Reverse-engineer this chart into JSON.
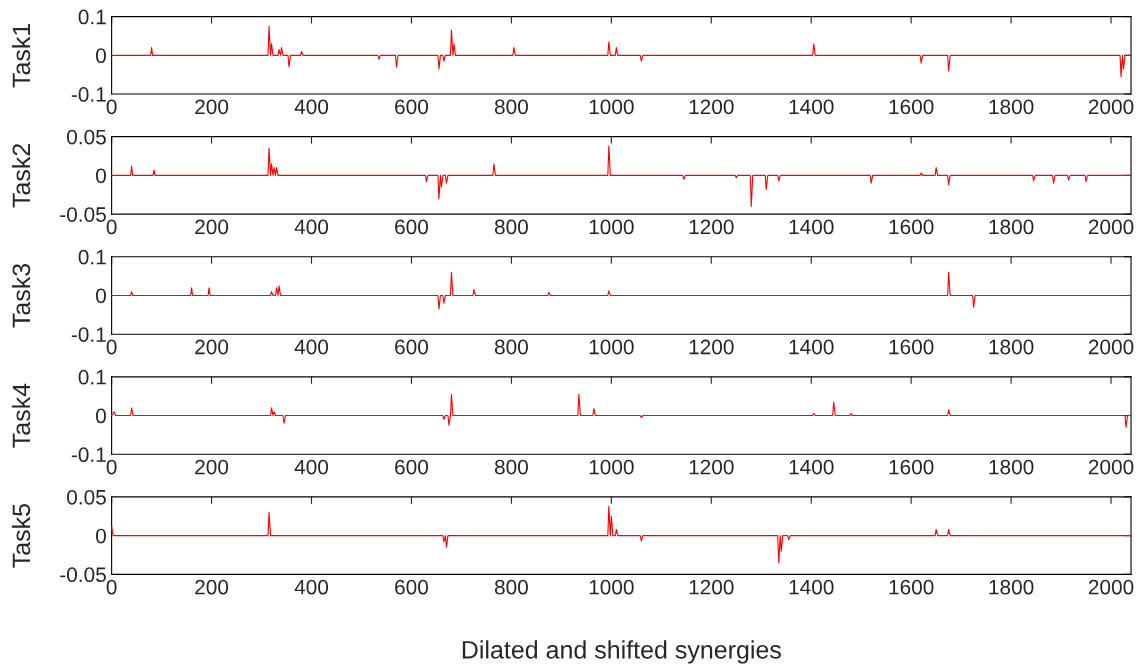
{
  "chart_data": [
    {
      "type": "line",
      "ylabel": "Task1",
      "xlim": [
        0,
        2040
      ],
      "ylim": [
        -0.1,
        0.1
      ],
      "xticks": [
        0,
        200,
        400,
        600,
        800,
        1000,
        1200,
        1400,
        1600,
        1800,
        2000
      ],
      "yticks": [
        -0.1,
        0,
        0.1
      ],
      "grid": false,
      "series": [
        {
          "color": "#ff0000",
          "x": [
            0,
            78,
            80,
            82,
            313,
            315,
            318,
            320,
            323,
            333,
            335,
            338,
            340,
            343,
            353,
            355,
            358,
            378,
            380,
            383,
            533,
            535,
            538,
            568,
            570,
            573,
            653,
            655,
            658,
            663,
            665,
            668,
            678,
            680,
            683,
            685,
            688,
            803,
            805,
            808,
            993,
            995,
            998,
            1008,
            1010,
            1013,
            1058,
            1060,
            1063,
            1403,
            1405,
            1408,
            1618,
            1620,
            1623,
            1673,
            1675,
            1678,
            2018,
            2020,
            2023,
            2025,
            2028,
            2040
          ],
          "values": [
            0,
            0,
            0.02,
            0,
            0,
            0.075,
            0,
            0.03,
            0,
            0,
            0.015,
            0,
            0.02,
            0,
            0,
            -0.03,
            0,
            0,
            0.01,
            0,
            0,
            -0.01,
            0,
            0,
            -0.03,
            0,
            0,
            -0.035,
            0,
            0,
            -0.015,
            0,
            0,
            0.065,
            0,
            0.03,
            0,
            0,
            0.02,
            0,
            0,
            0.035,
            0,
            0,
            0.02,
            0,
            0,
            -0.015,
            0,
            0,
            0.03,
            0,
            0,
            -0.02,
            0,
            0,
            -0.04,
            0,
            0,
            -0.055,
            0,
            -0.035,
            0,
            0
          ]
        }
      ]
    },
    {
      "type": "line",
      "ylabel": "Task2",
      "xlim": [
        0,
        2040
      ],
      "ylim": [
        -0.05,
        0.05
      ],
      "xticks": [
        0,
        200,
        400,
        600,
        800,
        1000,
        1200,
        1400,
        1600,
        1800,
        2000
      ],
      "yticks": [
        -0.05,
        0,
        0.05
      ],
      "grid": false,
      "series": [
        {
          "color": "#ff0000",
          "x": [
            0,
            38,
            40,
            42,
            83,
            85,
            87,
            313,
            315,
            318,
            320,
            323,
            325,
            328,
            330,
            333,
            628,
            630,
            633,
            653,
            655,
            658,
            660,
            663,
            668,
            670,
            673,
            763,
            765,
            768,
            993,
            995,
            998,
            1143,
            1145,
            1148,
            1248,
            1250,
            1253,
            1278,
            1280,
            1283,
            1308,
            1310,
            1313,
            1333,
            1335,
            1338,
            1518,
            1520,
            1523,
            1618,
            1620,
            1623,
            1648,
            1650,
            1653,
            1673,
            1675,
            1678,
            1843,
            1845,
            1848,
            1883,
            1885,
            1888,
            1913,
            1915,
            1918,
            1948,
            1950,
            1953,
            2040
          ],
          "values": [
            0,
            0,
            0.012,
            0,
            0,
            0.007,
            0,
            0,
            0.035,
            0,
            0.015,
            0,
            0.01,
            0,
            0.01,
            0,
            0,
            -0.008,
            0,
            0,
            -0.03,
            0,
            -0.015,
            0,
            0,
            -0.01,
            0,
            0,
            0.015,
            0,
            0,
            0.038,
            0,
            0,
            -0.005,
            0,
            0,
            -0.003,
            0,
            0,
            -0.04,
            0,
            0,
            -0.018,
            0,
            0,
            -0.007,
            0,
            0,
            -0.01,
            0,
            0,
            0.003,
            0,
            0,
            0.01,
            0,
            0,
            -0.012,
            0,
            0,
            -0.007,
            0,
            0,
            -0.01,
            0,
            0,
            -0.006,
            0,
            0,
            -0.008,
            0,
            0
          ]
        }
      ]
    },
    {
      "type": "line",
      "ylabel": "Task3",
      "xlim": [
        0,
        2040
      ],
      "ylim": [
        -0.1,
        0.1
      ],
      "xticks": [
        0,
        200,
        400,
        600,
        800,
        1000,
        1200,
        1400,
        1600,
        1800,
        2000
      ],
      "yticks": [
        -0.1,
        0,
        0.1
      ],
      "grid": false,
      "series": [
        {
          "color": "#ff0000",
          "x": [
            0,
            38,
            40,
            42,
            158,
            160,
            162,
            193,
            195,
            197,
            318,
            320,
            323,
            328,
            330,
            333,
            335,
            338,
            653,
            655,
            658,
            663,
            665,
            668,
            678,
            680,
            683,
            723,
            725,
            728,
            873,
            875,
            878,
            993,
            995,
            998,
            1673,
            1675,
            1678,
            1723,
            1725,
            1728,
            2040
          ],
          "values": [
            0,
            0,
            0.01,
            0,
            0,
            0.02,
            0,
            0,
            0.02,
            0,
            0,
            0.01,
            0,
            0,
            0.02,
            0,
            0.025,
            0,
            0,
            -0.035,
            0,
            0,
            -0.02,
            0,
            0,
            0.06,
            0,
            0,
            0.015,
            0,
            0,
            0.008,
            0,
            0,
            0.012,
            0,
            0,
            0.06,
            0,
            0,
            -0.03,
            0,
            0
          ]
        }
      ]
    },
    {
      "type": "line",
      "ylabel": "Task4",
      "xlim": [
        0,
        2040
      ],
      "ylim": [
        -0.1,
        0.1
      ],
      "xticks": [
        0,
        200,
        400,
        600,
        800,
        1000,
        1200,
        1400,
        1600,
        1800,
        2000
      ],
      "yticks": [
        -0.1,
        0,
        0.1
      ],
      "grid": false,
      "series": [
        {
          "color": "#ff0000",
          "x": [
            0,
            5,
            8,
            38,
            40,
            43,
            318,
            320,
            323,
            325,
            328,
            343,
            345,
            348,
            663,
            665,
            668,
            673,
            675,
            678,
            680,
            683,
            933,
            935,
            938,
            963,
            965,
            968,
            1058,
            1060,
            1063,
            1403,
            1405,
            1408,
            1443,
            1445,
            1448,
            1478,
            1480,
            1483,
            1673,
            1675,
            1678,
            2028,
            2030,
            2033,
            2040
          ],
          "values": [
            0,
            0.01,
            0,
            0,
            0.02,
            0,
            0,
            0.02,
            0,
            0.01,
            0,
            0,
            -0.02,
            0,
            0,
            -0.01,
            0,
            0,
            -0.025,
            0,
            0.055,
            0,
            0,
            0.055,
            0,
            0,
            0.018,
            0,
            0,
            -0.005,
            0,
            0,
            0.006,
            0,
            0,
            0.035,
            0,
            0,
            0.005,
            0,
            0,
            0.015,
            0,
            0,
            -0.03,
            0,
            0
          ]
        }
      ]
    },
    {
      "type": "line",
      "ylabel": "Task5",
      "xlabel": "Dilated and shifted synergies",
      "xlim": [
        0,
        2040
      ],
      "ylim": [
        -0.05,
        0.05
      ],
      "xticks": [
        0,
        200,
        400,
        600,
        800,
        1000,
        1200,
        1400,
        1600,
        1800,
        2000
      ],
      "yticks": [
        -0.05,
        0,
        0.05
      ],
      "grid": false,
      "series": [
        {
          "color": "#ff0000",
          "x": [
            0,
            3,
            313,
            315,
            318,
            663,
            665,
            668,
            670,
            673,
            993,
            995,
            998,
            1000,
            1003,
            1008,
            1010,
            1013,
            1058,
            1060,
            1063,
            1333,
            1335,
            1338,
            1340,
            1343,
            1353,
            1355,
            1358,
            1648,
            1650,
            1653,
            1673,
            1675,
            1678,
            2040
          ],
          "values": [
            0.012,
            0,
            0,
            0.03,
            0,
            0,
            -0.008,
            0,
            -0.015,
            0,
            0,
            0.038,
            0,
            0.025,
            0,
            0,
            0.008,
            0,
            0,
            -0.007,
            0,
            0,
            -0.035,
            0,
            -0.02,
            0,
            0,
            -0.005,
            0,
            0,
            0.008,
            0,
            0,
            0.008,
            0,
            0
          ]
        }
      ]
    }
  ]
}
